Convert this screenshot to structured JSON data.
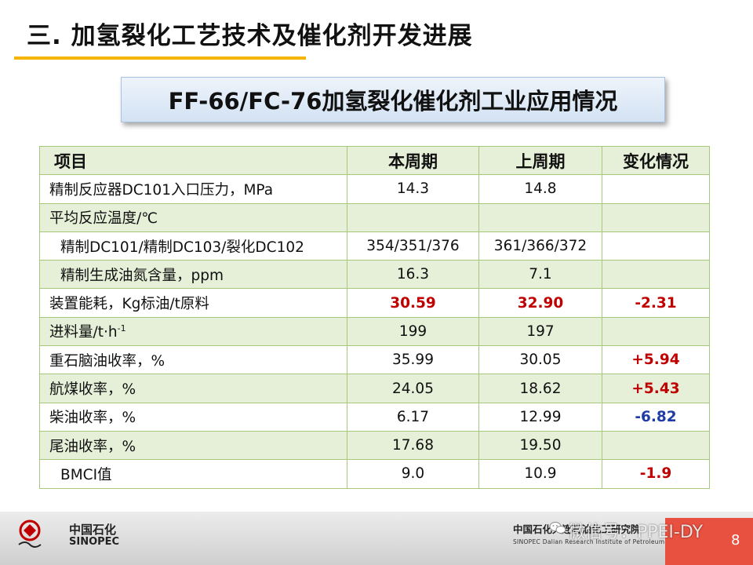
{
  "slide": {
    "title": "三. 加氢裂化工艺技术及催化剂开发进展",
    "banner": "FF-66/FC-76加氢裂化催化剂工业应用情况"
  },
  "table": {
    "headers": [
      "项目",
      "本周期",
      "上周期",
      "变化情况"
    ],
    "rows": [
      {
        "item": "精制反应器DC101入口压力，MPa",
        "current": "14.3",
        "previous": "14.8",
        "change": ""
      },
      {
        "item": "平均反应温度/℃",
        "current": "",
        "previous": "",
        "change": ""
      },
      {
        "item": "精制DC101/精制DC103/裂化DC102",
        "current": "354/351/376",
        "previous": "361/366/372",
        "change": ""
      },
      {
        "item": "精制生成油氮含量，ppm",
        "current": "16.3",
        "previous": "7.1",
        "change": ""
      },
      {
        "item": "装置能耗，Kg标油/t原料",
        "current": "30.59",
        "previous": "32.90",
        "change": "-2.31"
      },
      {
        "item": "进料量/t·h",
        "item_sup": "-1",
        "current": "199",
        "previous": "197",
        "change": ""
      },
      {
        "item": "重石脑油收率，%",
        "current": "35.99",
        "previous": "30.05",
        "change": "+5.94"
      },
      {
        "item": "航煤收率，%",
        "current": "24.05",
        "previous": "18.62",
        "change": "+5.43"
      },
      {
        "item": "柴油收率，%",
        "current": "6.17",
        "previous": "12.99",
        "change": "-6.82"
      },
      {
        "item": "尾油收率，%",
        "current": "17.68",
        "previous": "19.50",
        "change": ""
      },
      {
        "item": "BMCI值",
        "current": "9.0",
        "previous": "10.9",
        "change": "-1.9"
      }
    ]
  },
  "footer": {
    "logo_cn": "中国石化",
    "logo_en": "SINOPEC",
    "institute_cn": "中国石化大连石油化工研究院",
    "institute_en": "SINOPEC Dalian Research Institute of Petroleum and Petrochemicals",
    "watermark": "微信号：PPEI-DY",
    "page_number": "8"
  },
  "colors": {
    "accent_underline": "#f5b400",
    "table_border": "#a7c77a",
    "row_stripe": "#e6efd8",
    "positive_red": "#c00000",
    "negative_blue": "#1f3ca6",
    "corner_red": "#e8503f"
  },
  "icons": [
    "sinopec-logo-icon",
    "wechat-icon"
  ]
}
